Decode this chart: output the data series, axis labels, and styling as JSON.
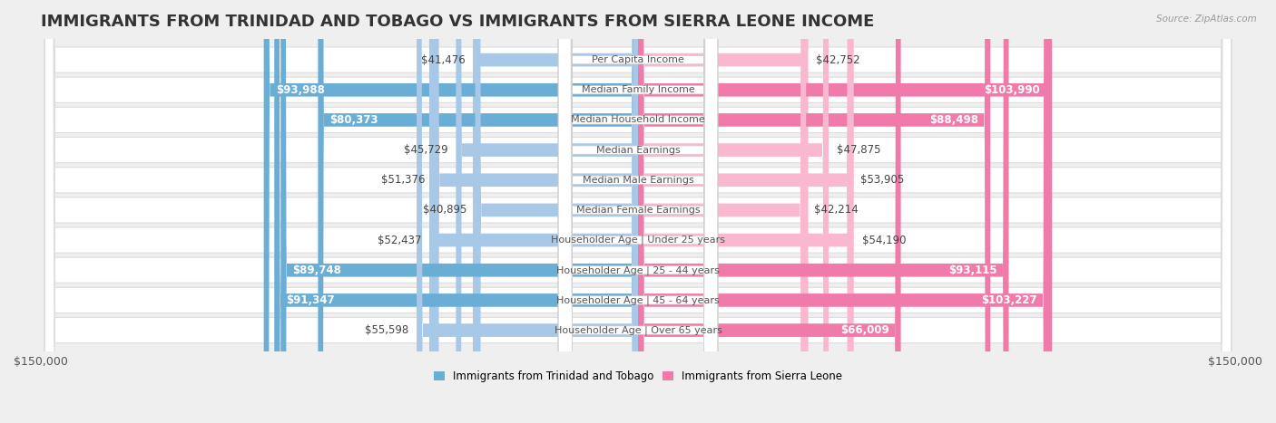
{
  "title": "IMMIGRANTS FROM TRINIDAD AND TOBAGO VS IMMIGRANTS FROM SIERRA LEONE INCOME",
  "source": "Source: ZipAtlas.com",
  "categories": [
    "Per Capita Income",
    "Median Family Income",
    "Median Household Income",
    "Median Earnings",
    "Median Male Earnings",
    "Median Female Earnings",
    "Householder Age | Under 25 years",
    "Householder Age | 25 - 44 years",
    "Householder Age | 45 - 64 years",
    "Householder Age | Over 65 years"
  ],
  "left_values": [
    41476,
    93988,
    80373,
    45729,
    51376,
    40895,
    52437,
    89748,
    91347,
    55598
  ],
  "right_values": [
    42752,
    103990,
    88498,
    47875,
    53905,
    42214,
    54190,
    93115,
    103227,
    66009
  ],
  "left_labels": [
    "$41,476",
    "$93,988",
    "$80,373",
    "$45,729",
    "$51,376",
    "$40,895",
    "$52,437",
    "$89,748",
    "$91,347",
    "$55,598"
  ],
  "right_labels": [
    "$42,752",
    "$103,990",
    "$88,498",
    "$47,875",
    "$53,905",
    "$42,214",
    "$54,190",
    "$93,115",
    "$103,227",
    "$66,009"
  ],
  "left_color_light": "#A8C8E8",
  "left_color_dark": "#6AAED6",
  "right_color_light": "#F9B8D0",
  "right_color_dark": "#F07BAA",
  "max_value": 150000,
  "bg_color": "#EFEFEF",
  "row_bg": "#FFFFFF",
  "legend_left": "Immigrants from Trinidad and Tobago",
  "legend_right": "Immigrants from Sierra Leone",
  "title_fontsize": 13,
  "label_fontsize": 8.5,
  "category_fontsize": 8,
  "axis_label_fontsize": 9,
  "inside_threshold": 60000
}
